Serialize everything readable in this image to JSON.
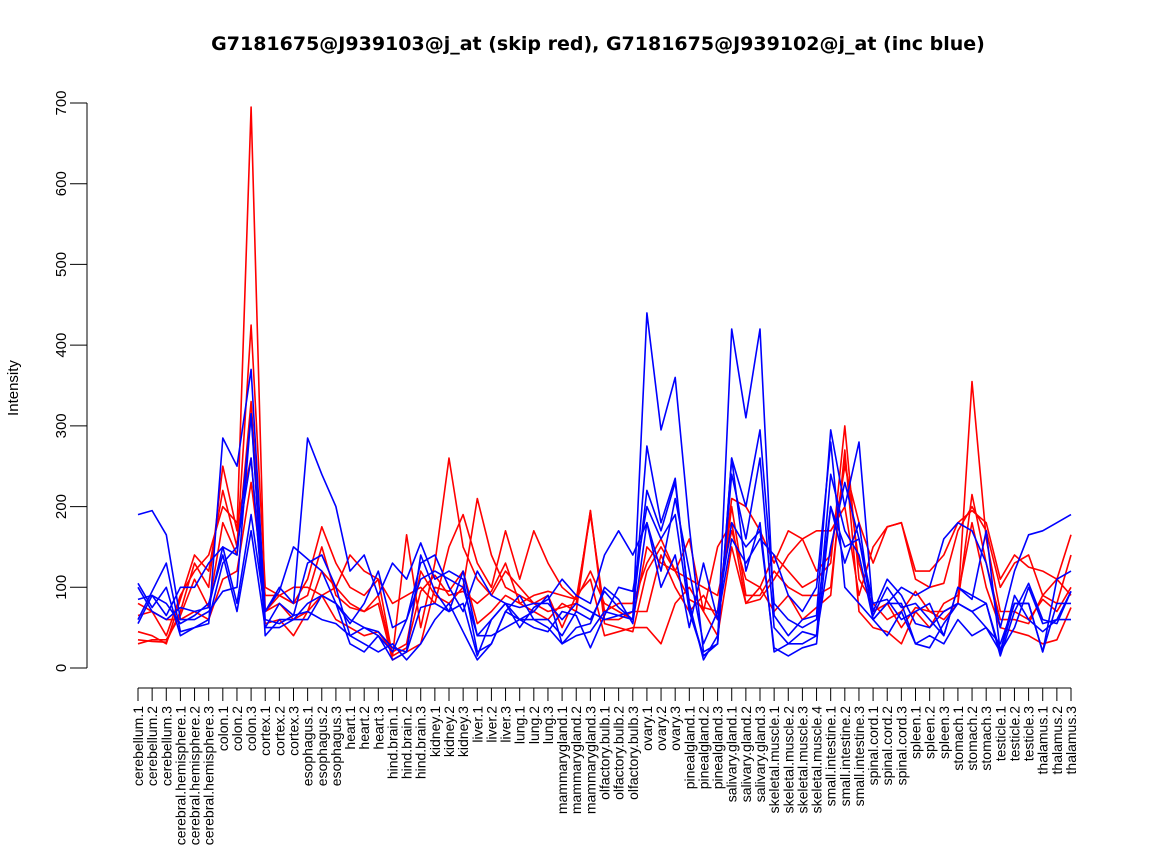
{
  "chart_data": {
    "type": "line",
    "title": "G7181675@J939103@j_at (skip red), G7181675@J939102@j_at (inc blue)",
    "xlabel": "",
    "ylabel": "Intensity",
    "ylim": [
      0,
      700
    ],
    "yticks": [
      0,
      100,
      200,
      300,
      400,
      500,
      600,
      700
    ],
    "grid": false,
    "categories": [
      "cerebellum.1",
      "cerebellum.2",
      "cerebellum.3",
      "cerebral.hemisphere.1",
      "cerebral.hemisphere.2",
      "cerebral.hemisphere.3",
      "colon.1",
      "colon.2",
      "colon.3",
      "cortex.1",
      "cortex.2",
      "cortex.3",
      "esophagus.1",
      "esophagus.2",
      "esophagus.3",
      "heart.1",
      "heart.2",
      "heart.3",
      "hind.brain.1",
      "hind.brain.2",
      "hind.brain.3",
      "kidney.1",
      "kidney.2",
      "kidney.3",
      "liver.1",
      "liver.2",
      "liver.3",
      "lung.1",
      "lung.2",
      "lung.3",
      "mammarygland.1",
      "mammarygland.2",
      "mammarygland.3",
      "olfactory.bulb.1",
      "olfactory.bulb.2",
      "olfactory.bulb.3",
      "ovary.1",
      "ovary.2",
      "ovary.3",
      "pinealgland.1",
      "pinealgland.2",
      "pinealgland.3",
      "salivary.gland.1",
      "salivary.gland.2",
      "salivary.gland.3",
      "skeletal.muscle.1",
      "skeletal.muscle.2",
      "skeletal.muscle.3",
      "skeletal.muscle.4",
      "small.intestine.1",
      "small.intestine.2",
      "small.intestine.3",
      "spinal.cord.1",
      "spinal.cord.2",
      "spinal.cord.3",
      "spleen.1",
      "spleen.2",
      "spleen.3",
      "stomach.1",
      "stomach.2",
      "stomach.3",
      "testicle.1",
      "testicle.2",
      "testicle.3",
      "thalamus.1",
      "thalamus.2",
      "thalamus.3"
    ],
    "series": [
      {
        "color": "#ff0000",
        "values": [
          35,
          33,
          32,
          70,
          130,
          100,
          250,
          170,
          695,
          70,
          80,
          60,
          70,
          120,
          100,
          80,
          70,
          80,
          10,
          20,
          30,
          100,
          95,
          120,
          55,
          70,
          90,
          80,
          70,
          60,
          80,
          70,
          195,
          60,
          60,
          70,
          70,
          140,
          100,
          70,
          90,
          60,
          200,
          90,
          90,
          120,
          100,
          90,
          90,
          100,
          260,
          130,
          70,
          80,
          50,
          75,
          70,
          60,
          80,
          355,
          160,
          70,
          70,
          60,
          85,
          70,
          100
        ]
      },
      {
        "color": "#ff0000",
        "values": [
          45,
          40,
          30,
          85,
          140,
          120,
          220,
          150,
          425,
          100,
          90,
          80,
          110,
          175,
          130,
          100,
          90,
          110,
          15,
          165,
          50,
          130,
          260,
          150,
          110,
          90,
          120,
          100,
          80,
          70,
          75,
          80,
          195,
          55,
          50,
          45,
          120,
          150,
          120,
          110,
          100,
          90,
          170,
          110,
          100,
          140,
          120,
          100,
          110,
          130,
          300,
          110,
          80,
          60,
          70,
          95,
          70,
          70,
          80,
          215,
          130,
          60,
          60,
          55,
          90,
          80,
          140
        ]
      },
      {
        "color": "#ff0000",
        "values": [
          65,
          70,
          40,
          90,
          120,
          140,
          200,
          180,
          260,
          55,
          60,
          40,
          70,
          90,
          60,
          50,
          40,
          45,
          20,
          30,
          120,
          90,
          80,
          100,
          210,
          140,
          100,
          90,
          80,
          90,
          50,
          90,
          110,
          40,
          45,
          50,
          50,
          30,
          80,
          100,
          70,
          40,
          150,
          80,
          100,
          70,
          90,
          60,
          75,
          90,
          270,
          70,
          50,
          45,
          30,
          70,
          50,
          80,
          90,
          180,
          100,
          50,
          45,
          40,
          30,
          35,
          75
        ]
      },
      {
        "color": "#ff0000",
        "values": [
          30,
          35,
          35,
          65,
          110,
          75,
          180,
          140,
          330,
          70,
          90,
          80,
          90,
          150,
          90,
          75,
          70,
          90,
          15,
          25,
          95,
          115,
          90,
          95,
          80,
          95,
          130,
          80,
          90,
          95,
          90,
          85,
          120,
          80,
          70,
          60,
          150,
          130,
          120,
          85,
          75,
          70,
          210,
          200,
          170,
          130,
          170,
          160,
          170,
          170,
          200,
          90,
          150,
          175,
          180,
          110,
          100,
          105,
          170,
          200,
          170,
          100,
          130,
          140,
          90,
          110,
          165
        ]
      },
      {
        "color": "#ff0000",
        "values": [
          80,
          70,
          60,
          60,
          70,
          60,
          110,
          120,
          230,
          90,
          90,
          100,
          100,
          90,
          100,
          140,
          120,
          110,
          80,
          90,
          100,
          80,
          150,
          190,
          130,
          100,
          170,
          110,
          170,
          130,
          100,
          85,
          190,
          70,
          80,
          80,
          130,
          160,
          120,
          160,
          70,
          150,
          180,
          80,
          85,
          110,
          140,
          160,
          120,
          140,
          250,
          180,
          130,
          175,
          180,
          120,
          120,
          140,
          180,
          195,
          180,
          110,
          140,
          125,
          120,
          110,
          90
        ]
      },
      {
        "color": "#0000ff",
        "values": [
          190,
          195,
          165,
          60,
          60,
          70,
          95,
          100,
          315,
          60,
          55,
          65,
          70,
          60,
          55,
          40,
          50,
          45,
          25,
          20,
          75,
          80,
          70,
          120,
          40,
          40,
          50,
          60,
          60,
          50,
          30,
          40,
          45,
          70,
          65,
          60,
          440,
          295,
          360,
          175,
          20,
          30,
          420,
          310,
          420,
          65,
          40,
          60,
          65,
          295,
          200,
          280,
          70,
          110,
          90,
          55,
          50,
          70,
          80,
          70,
          50,
          30,
          80,
          80,
          20,
          110,
          120
        ]
      },
      {
        "color": "#0000ff",
        "values": [
          60,
          95,
          130,
          45,
          50,
          55,
          285,
          250,
          370,
          70,
          100,
          80,
          285,
          240,
          200,
          120,
          140,
          90,
          130,
          110,
          155,
          110,
          120,
          110,
          20,
          30,
          70,
          90,
          60,
          60,
          40,
          70,
          60,
          95,
          75,
          60,
          275,
          180,
          235,
          75,
          15,
          30,
          260,
          200,
          295,
          80,
          60,
          50,
          60,
          200,
          150,
          160,
          65,
          100,
          75,
          80,
          60,
          40,
          100,
          90,
          80,
          20,
          90,
          60,
          45,
          60,
          95
        ]
      },
      {
        "color": "#0000ff",
        "values": [
          100,
          70,
          60,
          75,
          70,
          75,
          150,
          140,
          315,
          40,
          60,
          60,
          80,
          90,
          80,
          60,
          50,
          40,
          20,
          60,
          110,
          120,
          110,
          100,
          40,
          60,
          80,
          75,
          80,
          80,
          60,
          80,
          70,
          60,
          65,
          70,
          220,
          170,
          230,
          80,
          10,
          40,
          240,
          160,
          260,
          50,
          30,
          45,
          40,
          240,
          170,
          140,
          60,
          80,
          80,
          30,
          40,
          30,
          60,
          40,
          50,
          20,
          50,
          100,
          55,
          60,
          60
        ]
      },
      {
        "color": "#0000ff",
        "values": [
          105,
          75,
          100,
          40,
          50,
          60,
          130,
          150,
          260,
          50,
          80,
          65,
          130,
          140,
          100,
          40,
          30,
          20,
          30,
          10,
          30,
          60,
          80,
          45,
          10,
          30,
          70,
          60,
          70,
          90,
          30,
          50,
          55,
          100,
          85,
          55,
          180,
          120,
          210,
          120,
          30,
          70,
          180,
          150,
          170,
          25,
          15,
          25,
          30,
          200,
          130,
          180,
          60,
          40,
          70,
          30,
          25,
          55,
          80,
          70,
          80,
          15,
          70,
          105,
          60,
          55,
          95
        ]
      },
      {
        "color": "#0000ff",
        "values": [
          85,
          90,
          80,
          55,
          65,
          80,
          140,
          70,
          170,
          50,
          50,
          60,
          60,
          90,
          80,
          30,
          20,
          40,
          10,
          20,
          140,
          95,
          70,
          80,
          15,
          60,
          80,
          60,
          50,
          45,
          70,
          65,
          25,
          65,
          100,
          95,
          200,
          160,
          190,
          70,
          15,
          30,
          260,
          120,
          180,
          20,
          30,
          30,
          40,
          150,
          230,
          160,
          80,
          85,
          60,
          70,
          80,
          40,
          100,
          85,
          170,
          20,
          80,
          80,
          20,
          80,
          80
        ]
      },
      {
        "color": "#0000ff",
        "values": [
          55,
          90,
          65,
          100,
          100,
          130,
          150,
          80,
          190,
          70,
          95,
          150,
          135,
          120,
          80,
          55,
          80,
          120,
          50,
          60,
          130,
          140,
          100,
          70,
          120,
          90,
          80,
          50,
          75,
          85,
          110,
          90,
          80,
          140,
          170,
          140,
          180,
          100,
          140,
          50,
          130,
          60,
          160,
          130,
          160,
          140,
          90,
          70,
          100,
          280,
          100,
          80,
          60,
          80,
          100,
          90,
          100,
          160,
          180,
          170,
          130,
          50,
          120,
          165,
          170,
          180,
          190
        ]
      }
    ]
  }
}
